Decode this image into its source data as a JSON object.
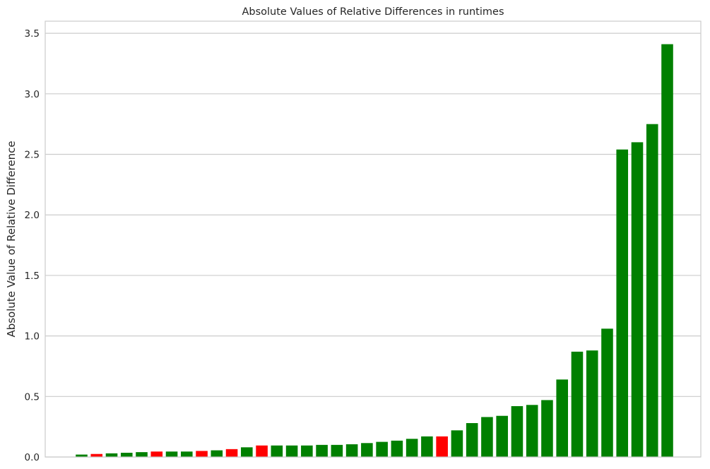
{
  "chart_data": {
    "type": "bar",
    "title": "Absolute Values of Relative Differences in runtimes",
    "xlabel": "",
    "ylabel": "Absolute Value of Relative Difference",
    "ylim": [
      0,
      3.6
    ],
    "yticks": [
      "0.0",
      "0.5",
      "1.0",
      "1.5",
      "2.0",
      "2.5",
      "3.0",
      "3.5"
    ],
    "grid": "horizontal",
    "colors": {
      "positive": "#008000",
      "negative": "#ff0000",
      "grid": "#cccccc"
    },
    "bars": [
      {
        "value": 0.02,
        "color": "green"
      },
      {
        "value": 0.025,
        "color": "red"
      },
      {
        "value": 0.03,
        "color": "green"
      },
      {
        "value": 0.035,
        "color": "green"
      },
      {
        "value": 0.04,
        "color": "green"
      },
      {
        "value": 0.045,
        "color": "red"
      },
      {
        "value": 0.045,
        "color": "green"
      },
      {
        "value": 0.045,
        "color": "green"
      },
      {
        "value": 0.05,
        "color": "red"
      },
      {
        "value": 0.055,
        "color": "green"
      },
      {
        "value": 0.065,
        "color": "red"
      },
      {
        "value": 0.08,
        "color": "green"
      },
      {
        "value": 0.095,
        "color": "red"
      },
      {
        "value": 0.095,
        "color": "green"
      },
      {
        "value": 0.095,
        "color": "green"
      },
      {
        "value": 0.095,
        "color": "green"
      },
      {
        "value": 0.1,
        "color": "green"
      },
      {
        "value": 0.1,
        "color": "green"
      },
      {
        "value": 0.105,
        "color": "green"
      },
      {
        "value": 0.115,
        "color": "green"
      },
      {
        "value": 0.125,
        "color": "green"
      },
      {
        "value": 0.135,
        "color": "green"
      },
      {
        "value": 0.15,
        "color": "green"
      },
      {
        "value": 0.17,
        "color": "green"
      },
      {
        "value": 0.17,
        "color": "red"
      },
      {
        "value": 0.22,
        "color": "green"
      },
      {
        "value": 0.28,
        "color": "green"
      },
      {
        "value": 0.33,
        "color": "green"
      },
      {
        "value": 0.34,
        "color": "green"
      },
      {
        "value": 0.42,
        "color": "green"
      },
      {
        "value": 0.43,
        "color": "green"
      },
      {
        "value": 0.47,
        "color": "green"
      },
      {
        "value": 0.64,
        "color": "green"
      },
      {
        "value": 0.87,
        "color": "green"
      },
      {
        "value": 0.88,
        "color": "green"
      },
      {
        "value": 1.06,
        "color": "green"
      },
      {
        "value": 2.54,
        "color": "green"
      },
      {
        "value": 2.6,
        "color": "green"
      },
      {
        "value": 2.75,
        "color": "green"
      },
      {
        "value": 3.41,
        "color": "green"
      }
    ]
  }
}
